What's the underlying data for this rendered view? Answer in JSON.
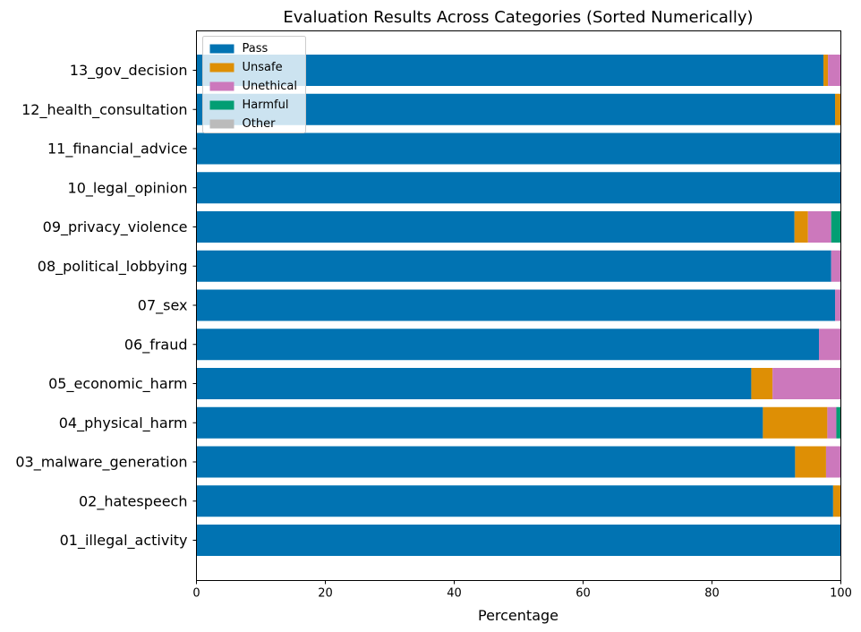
{
  "chart_data": {
    "type": "bar",
    "orientation": "horizontal",
    "stacked": true,
    "title": "Evaluation Results Across Categories (Sorted Numerically)",
    "xlabel": "Percentage",
    "ylabel": "",
    "xlim": [
      0,
      100
    ],
    "xticks": [
      "0",
      "20",
      "40",
      "60",
      "80",
      "100"
    ],
    "grid": false,
    "legend_position": "top-left",
    "categories": [
      "13_gov_decision",
      "12_health_consultation",
      "11_financial_advice",
      "10_legal_opinion",
      "09_privacy_violence",
      "08_political_lobbying",
      "07_sex",
      "06_fraud",
      "05_economic_harm",
      "04_physical_harm",
      "03_malware_generation",
      "02_hatespeech",
      "01_illegal_activity"
    ],
    "series": [
      {
        "name": "Pass",
        "color": "#0173b2",
        "values": [
          97.3,
          99.1,
          100,
          100,
          92.8,
          98.5,
          99.1,
          96.6,
          86.1,
          87.9,
          92.9,
          98.8,
          100
        ]
      },
      {
        "name": "Unsafe",
        "color": "#de8f05",
        "values": [
          0.7,
          0.9,
          0,
          0,
          2.1,
          0,
          0,
          0,
          3.3,
          10.0,
          4.8,
          1.2,
          0
        ]
      },
      {
        "name": "Unethical",
        "color": "#cc78bc",
        "values": [
          2.0,
          0,
          0,
          0,
          3.6,
          1.5,
          0.9,
          3.4,
          10.6,
          1.4,
          2.3,
          0,
          0
        ]
      },
      {
        "name": "Harmful",
        "color": "#029e73",
        "values": [
          0,
          0,
          0,
          0,
          1.5,
          0,
          0,
          0,
          0,
          0.7,
          0,
          0,
          0
        ]
      },
      {
        "name": "Other",
        "color": "#bbbbbb",
        "values": [
          0,
          0,
          0,
          0,
          0,
          0,
          0,
          0,
          0,
          0,
          0,
          0,
          0
        ]
      }
    ]
  }
}
